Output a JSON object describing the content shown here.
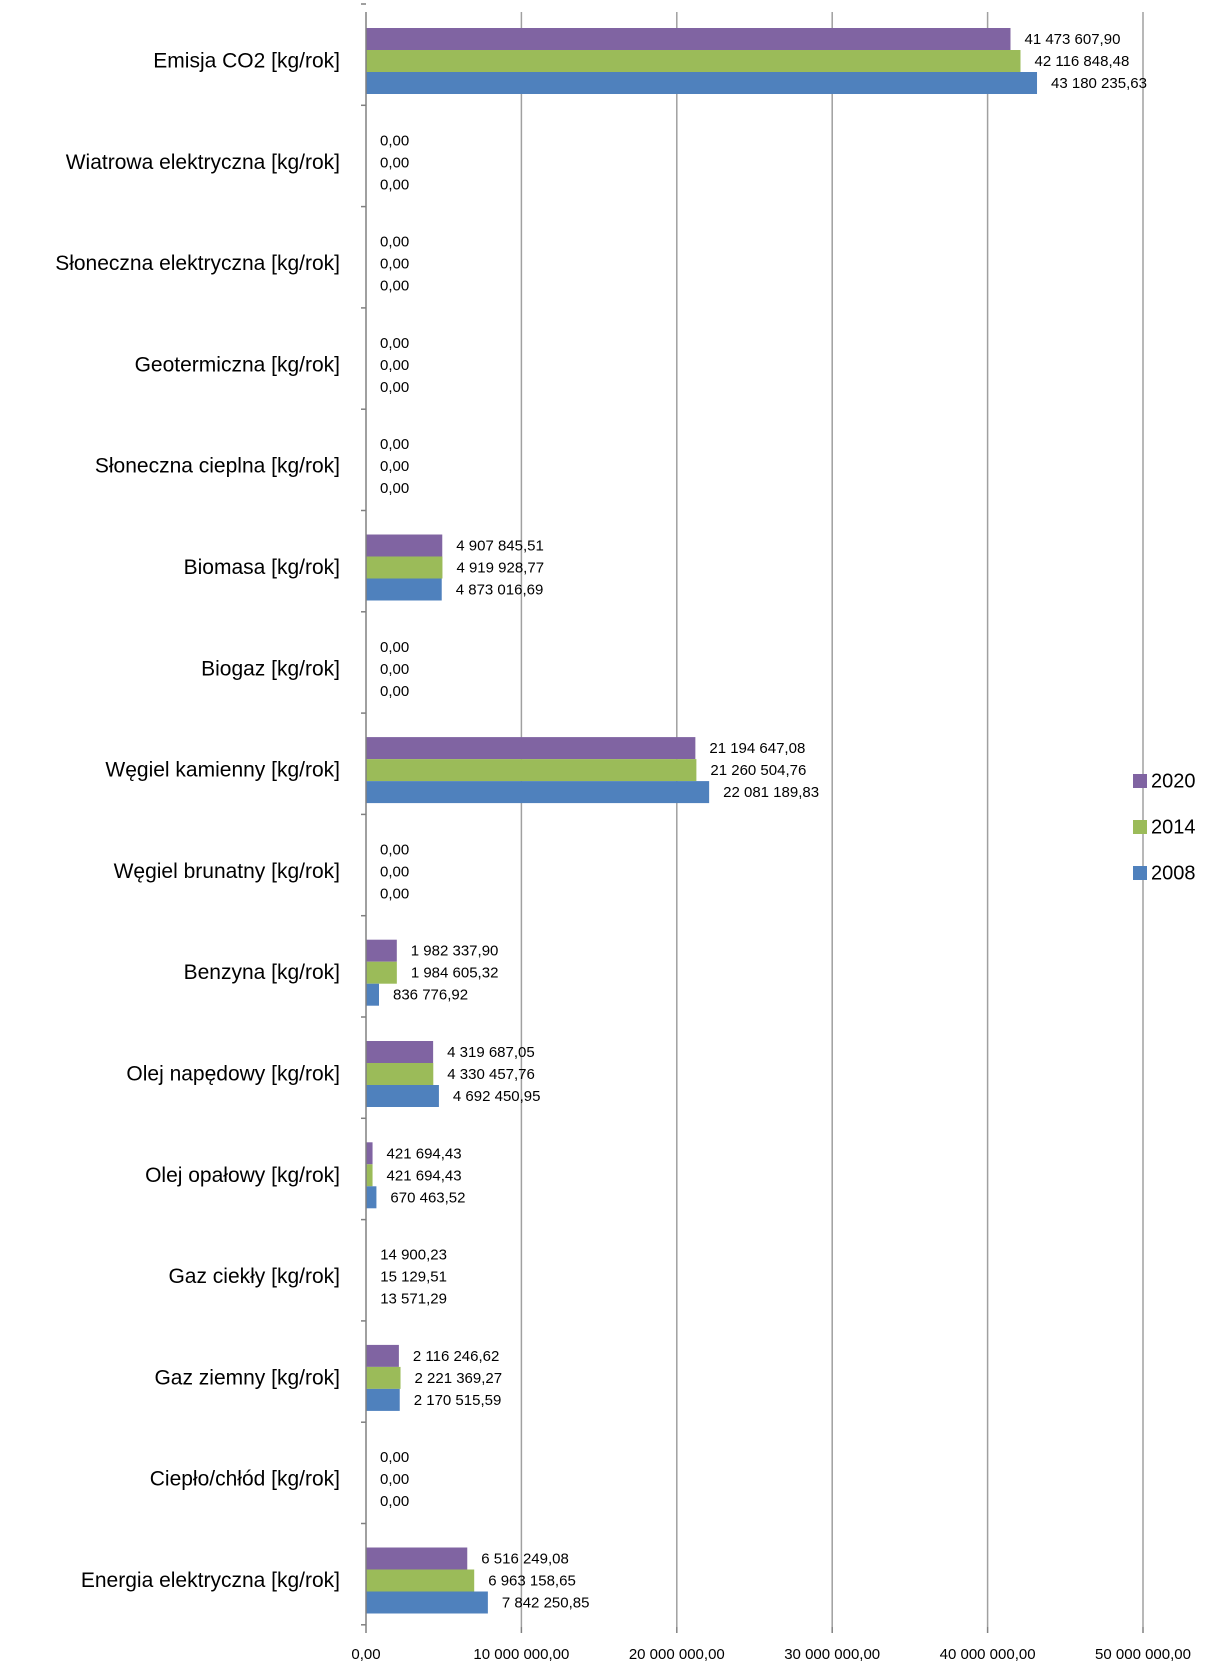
{
  "chart_data": {
    "type": "bar",
    "orientation": "horizontal",
    "categories": [
      "Emisja CO2 [kg/rok]",
      "Wiatrowa elektryczna [kg/rok]",
      "Słoneczna elektryczna [kg/rok]",
      "Geotermiczna [kg/rok]",
      "Słoneczna cieplna [kg/rok]",
      "Biomasa [kg/rok]",
      "Biogaz [kg/rok]",
      "Węgiel kamienny [kg/rok]",
      "Węgiel brunatny [kg/rok]",
      "Benzyna [kg/rok]",
      "Olej napędowy [kg/rok]",
      "Olej opałowy [kg/rok]",
      "Gaz ciekły [kg/rok]",
      "Gaz ziemny [kg/rok]",
      "Ciepło/chłód [kg/rok]",
      "Energia elektryczna [kg/rok]"
    ],
    "series": [
      {
        "name": "2020",
        "color": "#8064A2",
        "values": [
          41473607.9,
          0,
          0,
          0,
          0,
          4907845.51,
          0,
          21194647.08,
          0,
          1982337.9,
          4319687.05,
          421694.43,
          14900.23,
          2116246.62,
          0,
          6516249.08
        ],
        "labels": [
          "41 473 607,90",
          "0,00",
          "0,00",
          "0,00",
          "0,00",
          "4 907 845,51",
          "0,00",
          "21 194 647,08",
          "0,00",
          "1 982 337,90",
          "4 319 687,05",
          "421 694,43",
          "14 900,23",
          "2 116 246,62",
          "0,00",
          "6 516 249,08"
        ]
      },
      {
        "name": "2014",
        "color": "#9BBB59",
        "values": [
          42116848.48,
          0,
          0,
          0,
          0,
          4919928.77,
          0,
          21260504.76,
          0,
          1984605.32,
          4330457.76,
          421694.43,
          15129.51,
          2221369.27,
          0,
          6963158.65
        ],
        "labels": [
          "42 116 848,48",
          "0,00",
          "0,00",
          "0,00",
          "0,00",
          "4 919 928,77",
          "0,00",
          "21 260 504,76",
          "0,00",
          "1 984 605,32",
          "4 330 457,76",
          "421 694,43",
          "15 129,51",
          "2 221 369,27",
          "0,00",
          "6 963 158,65"
        ]
      },
      {
        "name": "2008",
        "color": "#4F81BD",
        "values": [
          43180235.63,
          0,
          0,
          0,
          0,
          4873016.69,
          0,
          22081189.83,
          0,
          836776.92,
          4692450.95,
          670463.52,
          13571.29,
          2170515.59,
          0,
          7842250.85
        ],
        "labels": [
          "43 180 235,63",
          "0,00",
          "0,00",
          "0,00",
          "0,00",
          "4 873 016,69",
          "0,00",
          "22 081 189,83",
          "0,00",
          "836 776,92",
          "4 692 450,95",
          "670 463,52",
          "13 571,29",
          "2 170 515,59",
          "0,00",
          "7 842 250,85"
        ]
      }
    ],
    "xlim": [
      0,
      50000000
    ],
    "xticks": [
      0,
      10000000,
      20000000,
      30000000,
      40000000,
      50000000
    ],
    "xtick_labels": [
      "0,00",
      "10 000 000,00",
      "20 000 000,00",
      "30 000 000,00",
      "40 000 000,00",
      "50 000 000,00"
    ],
    "title": "",
    "xlabel": "",
    "ylabel": "",
    "grid": "vertical",
    "gridline_color": "#A0A0A0",
    "legend": {
      "placement": "right",
      "entries": [
        "2020",
        "2014",
        "2008"
      ]
    }
  }
}
